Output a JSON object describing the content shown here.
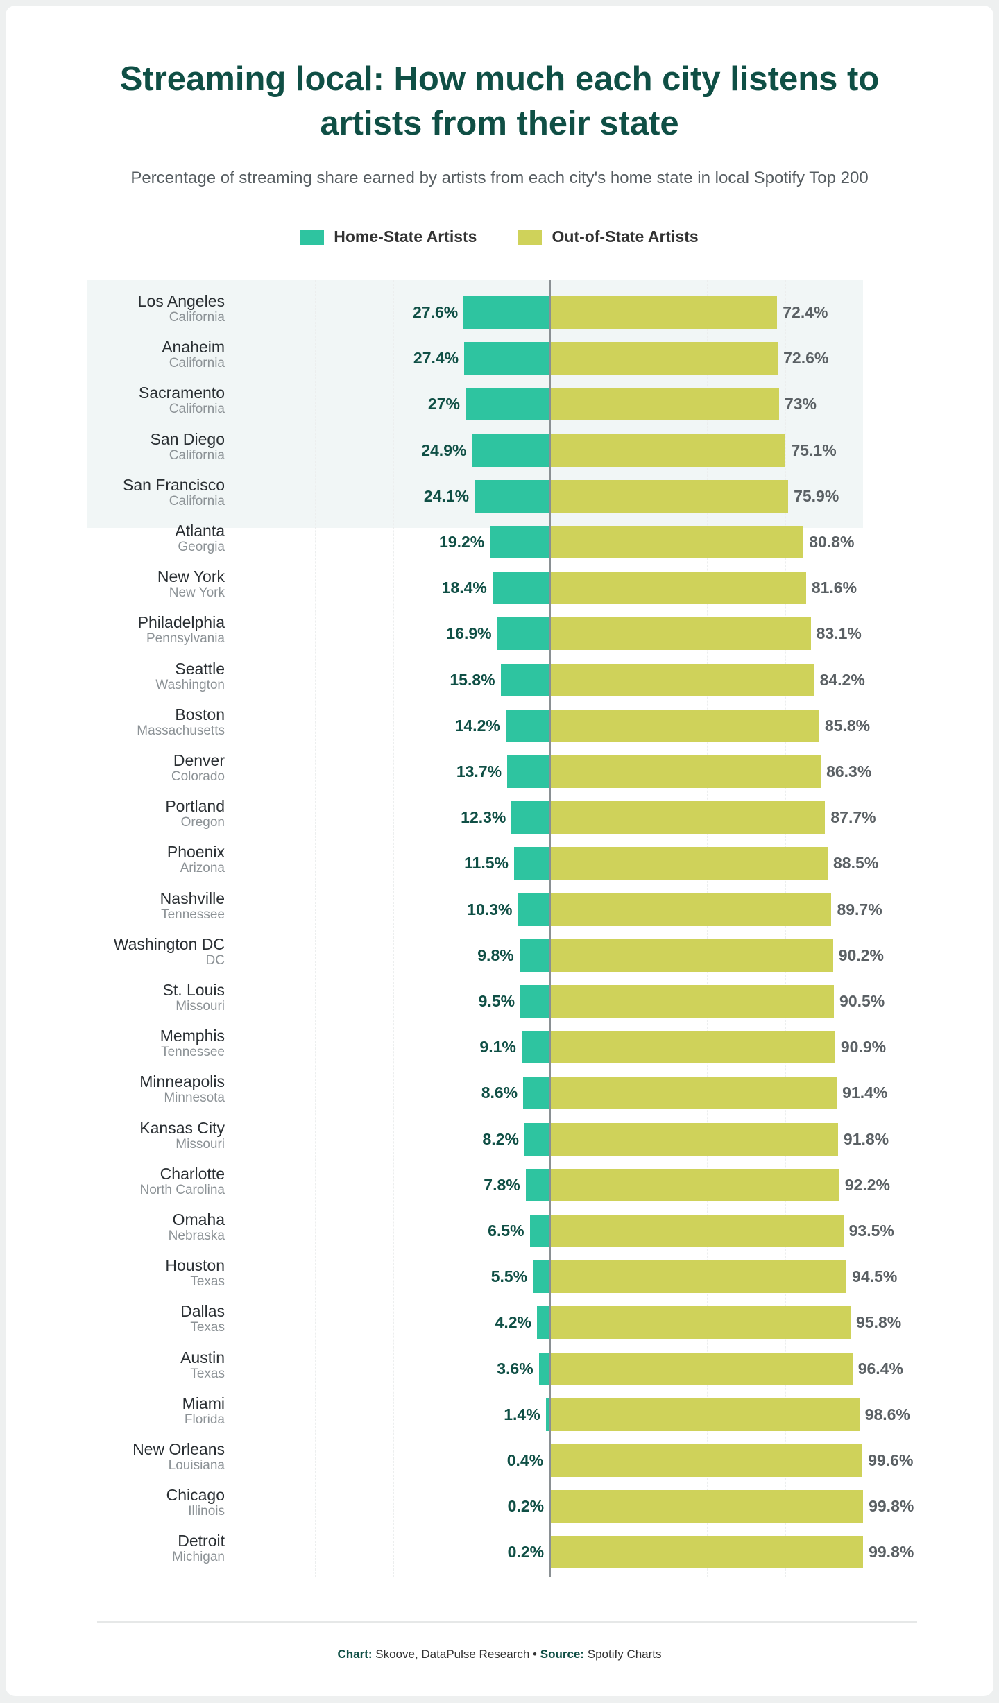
{
  "title_line1": "Streaming local: How much each city listens to",
  "title_line2": "artists from their state",
  "subtitle": "Percentage of streaming share earned by artists from each city's home state in local Spotify Top 200",
  "colors": {
    "home": "#2ec4a0",
    "out": "#cfd25a",
    "title": "#0f4f45",
    "highlight_band": "#f1f6f6"
  },
  "legend": [
    {
      "label": "Home-State Artists"
    },
    {
      "label": "Out-of-State Artists"
    }
  ],
  "footer": {
    "chart_label": "Chart:",
    "chart_value": " Skoove, DataPulse Research",
    "separator": " • ",
    "source_label": "Source:",
    "source_value": " Spotify Charts"
  },
  "chart_data": {
    "type": "bar",
    "orientation": "horizontal-diverging",
    "xlim": [
      -100,
      100
    ],
    "grid": true,
    "legend_placement": "top",
    "highlighted_state": "California",
    "series": [
      {
        "name": "Home-State Artists"
      },
      {
        "name": "Out-of-State Artists"
      }
    ],
    "rows": [
      {
        "city": "Los Angeles",
        "state": "California",
        "home": 27.6,
        "out": 72.4,
        "home_label": "27.6%",
        "out_label": "72.4%"
      },
      {
        "city": "Anaheim",
        "state": "California",
        "home": 27.4,
        "out": 72.6,
        "home_label": "27.4%",
        "out_label": "72.6%"
      },
      {
        "city": "Sacramento",
        "state": "California",
        "home": 27,
        "out": 73,
        "home_label": "27%",
        "out_label": "73%"
      },
      {
        "city": "San Diego",
        "state": "California",
        "home": 24.9,
        "out": 75.1,
        "home_label": "24.9%",
        "out_label": "75.1%"
      },
      {
        "city": "San Francisco",
        "state": "California",
        "home": 24.1,
        "out": 75.9,
        "home_label": "24.1%",
        "out_label": "75.9%"
      },
      {
        "city": "Atlanta",
        "state": "Georgia",
        "home": 19.2,
        "out": 80.8,
        "home_label": "19.2%",
        "out_label": "80.8%"
      },
      {
        "city": "New York",
        "state": "New York",
        "home": 18.4,
        "out": 81.6,
        "home_label": "18.4%",
        "out_label": "81.6%"
      },
      {
        "city": "Philadelphia",
        "state": "Pennsylvania",
        "home": 16.9,
        "out": 83.1,
        "home_label": "16.9%",
        "out_label": "83.1%"
      },
      {
        "city": "Seattle",
        "state": "Washington",
        "home": 15.8,
        "out": 84.2,
        "home_label": "15.8%",
        "out_label": "84.2%"
      },
      {
        "city": "Boston",
        "state": "Massachusetts",
        "home": 14.2,
        "out": 85.8,
        "home_label": "14.2%",
        "out_label": "85.8%"
      },
      {
        "city": "Denver",
        "state": "Colorado",
        "home": 13.7,
        "out": 86.3,
        "home_label": "13.7%",
        "out_label": "86.3%"
      },
      {
        "city": "Portland",
        "state": "Oregon",
        "home": 12.3,
        "out": 87.7,
        "home_label": "12.3%",
        "out_label": "87.7%"
      },
      {
        "city": "Phoenix",
        "state": "Arizona",
        "home": 11.5,
        "out": 88.5,
        "home_label": "11.5%",
        "out_label": "88.5%"
      },
      {
        "city": "Nashville",
        "state": "Tennessee",
        "home": 10.3,
        "out": 89.7,
        "home_label": "10.3%",
        "out_label": "89.7%"
      },
      {
        "city": "Washington DC",
        "state": "DC",
        "home": 9.8,
        "out": 90.2,
        "home_label": "9.8%",
        "out_label": "90.2%"
      },
      {
        "city": "St. Louis",
        "state": "Missouri",
        "home": 9.5,
        "out": 90.5,
        "home_label": "9.5%",
        "out_label": "90.5%"
      },
      {
        "city": "Memphis",
        "state": "Tennessee",
        "home": 9.1,
        "out": 90.9,
        "home_label": "9.1%",
        "out_label": "90.9%"
      },
      {
        "city": "Minneapolis",
        "state": "Minnesota",
        "home": 8.6,
        "out": 91.4,
        "home_label": "8.6%",
        "out_label": "91.4%"
      },
      {
        "city": "Kansas City",
        "state": "Missouri",
        "home": 8.2,
        "out": 91.8,
        "home_label": "8.2%",
        "out_label": "91.8%"
      },
      {
        "city": "Charlotte",
        "state": "North Carolina",
        "home": 7.8,
        "out": 92.2,
        "home_label": "7.8%",
        "out_label": "92.2%"
      },
      {
        "city": "Omaha",
        "state": "Nebraska",
        "home": 6.5,
        "out": 93.5,
        "home_label": "6.5%",
        "out_label": "93.5%"
      },
      {
        "city": "Houston",
        "state": "Texas",
        "home": 5.5,
        "out": 94.5,
        "home_label": "5.5%",
        "out_label": "94.5%"
      },
      {
        "city": "Dallas",
        "state": "Texas",
        "home": 4.2,
        "out": 95.8,
        "home_label": "4.2%",
        "out_label": "95.8%"
      },
      {
        "city": "Austin",
        "state": "Texas",
        "home": 3.6,
        "out": 96.4,
        "home_label": "3.6%",
        "out_label": "96.4%"
      },
      {
        "city": "Miami",
        "state": "Florida",
        "home": 1.4,
        "out": 98.6,
        "home_label": "1.4%",
        "out_label": "98.6%"
      },
      {
        "city": "New Orleans",
        "state": "Louisiana",
        "home": 0.4,
        "out": 99.6,
        "home_label": "0.4%",
        "out_label": "99.6%"
      },
      {
        "city": "Chicago",
        "state": "Illinois",
        "home": 0.2,
        "out": 99.8,
        "home_label": "0.2%",
        "out_label": "99.8%"
      },
      {
        "city": "Detroit",
        "state": "Michigan",
        "home": 0.2,
        "out": 99.8,
        "home_label": "0.2%",
        "out_label": "99.8%"
      }
    ]
  }
}
